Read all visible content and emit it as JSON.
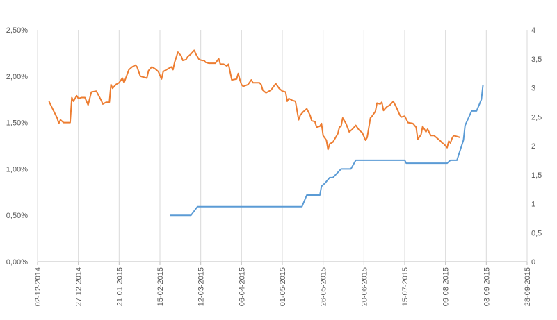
{
  "chart_data": {
    "type": "line",
    "title": "",
    "xlabel": "",
    "ylabel": "",
    "y2label": "",
    "grid": "vertical",
    "legend": "none",
    "x_ticks": [
      "02-12-2014",
      "27-12-2014",
      "21-01-2015",
      "15-02-2015",
      "12-03-2015",
      "06-04-2015",
      "01-05-2015",
      "26-05-2015",
      "20-06-2015",
      "15-07-2015",
      "09-08-2015",
      "03-09-2015",
      "28-09-2015"
    ],
    "xlim": [
      "2014-12-02",
      "2015-09-28"
    ],
    "y_left_ticks": [
      "0,00%",
      "0,50%",
      "1,00%",
      "1,50%",
      "2,00%",
      "2,50%"
    ],
    "ylim_left": [
      0,
      0.025
    ],
    "y_right_ticks": [
      "0",
      "0,5",
      "1",
      "1,5",
      "2",
      "2,5",
      "3",
      "3,5",
      "4"
    ],
    "ylim_right": [
      0,
      4
    ],
    "colors": {
      "series_orange": "#ED7D31",
      "series_blue": "#5B9BD5",
      "grid": "#D9D9D9",
      "axis": "#BFBFBF"
    },
    "series": [
      {
        "axis": "left",
        "color": "#ED7D31",
        "points": [
          [
            "2014-12-09",
            0.0173
          ],
          [
            "2014-12-12",
            0.0162
          ],
          [
            "2014-12-14",
            0.0155
          ],
          [
            "2014-12-15",
            0.0149
          ],
          [
            "2014-12-16",
            0.0153
          ],
          [
            "2014-12-18",
            0.015
          ],
          [
            "2014-12-20",
            0.015
          ],
          [
            "2014-12-22",
            0.015
          ],
          [
            "2014-12-23",
            0.0177
          ],
          [
            "2014-12-24",
            0.0173
          ],
          [
            "2014-12-26",
            0.0179
          ],
          [
            "2014-12-27",
            0.0176
          ],
          [
            "2014-12-29",
            0.0177
          ],
          [
            "2014-12-31",
            0.0177
          ],
          [
            "2015-01-02",
            0.0169
          ],
          [
            "2015-01-04",
            0.0183
          ],
          [
            "2015-01-07",
            0.0184
          ],
          [
            "2015-01-10",
            0.0174
          ],
          [
            "2015-01-11",
            0.017
          ],
          [
            "2015-01-13",
            0.0172
          ],
          [
            "2015-01-15",
            0.0172
          ],
          [
            "2015-01-16",
            0.0191
          ],
          [
            "2015-01-17",
            0.0187
          ],
          [
            "2015-01-19",
            0.0191
          ],
          [
            "2015-01-21",
            0.0193
          ],
          [
            "2015-01-23",
            0.0198
          ],
          [
            "2015-01-24",
            0.0193
          ],
          [
            "2015-01-27",
            0.0207
          ],
          [
            "2015-01-29",
            0.021
          ],
          [
            "2015-01-31",
            0.0212
          ],
          [
            "2015-02-01",
            0.021
          ],
          [
            "2015-02-03",
            0.02
          ],
          [
            "2015-02-07",
            0.0198
          ],
          [
            "2015-02-08",
            0.0206
          ],
          [
            "2015-02-10",
            0.021
          ],
          [
            "2015-02-12",
            0.0208
          ],
          [
            "2015-02-14",
            0.0205
          ],
          [
            "2015-02-16",
            0.0197
          ],
          [
            "2015-02-17",
            0.0205
          ],
          [
            "2015-02-20",
            0.0208
          ],
          [
            "2015-02-22",
            0.021
          ],
          [
            "2015-02-23",
            0.0207
          ],
          [
            "2015-02-24",
            0.0215
          ],
          [
            "2015-02-26",
            0.0226
          ],
          [
            "2015-02-28",
            0.0222
          ],
          [
            "2015-03-01",
            0.0217
          ],
          [
            "2015-03-03",
            0.0218
          ],
          [
            "2015-03-04",
            0.0221
          ],
          [
            "2015-03-06",
            0.0224
          ],
          [
            "2015-03-08",
            0.0228
          ],
          [
            "2015-03-09",
            0.0224
          ],
          [
            "2015-03-11",
            0.0218
          ],
          [
            "2015-03-13",
            0.0217
          ],
          [
            "2015-03-14",
            0.0217
          ],
          [
            "2015-03-15",
            0.0215
          ],
          [
            "2015-03-17",
            0.0214
          ],
          [
            "2015-03-20",
            0.0214
          ],
          [
            "2015-03-21",
            0.0214
          ],
          [
            "2015-03-23",
            0.0219
          ],
          [
            "2015-03-24",
            0.0213
          ],
          [
            "2015-03-26",
            0.0213
          ],
          [
            "2015-03-28",
            0.0211
          ],
          [
            "2015-03-29",
            0.0213
          ],
          [
            "2015-03-31",
            0.0196
          ],
          [
            "2015-04-03",
            0.0197
          ],
          [
            "2015-04-04",
            0.0203
          ],
          [
            "2015-04-05",
            0.0196
          ],
          [
            "2015-04-06",
            0.0191
          ],
          [
            "2015-04-07",
            0.0189
          ],
          [
            "2015-04-10",
            0.0191
          ],
          [
            "2015-04-12",
            0.0196
          ],
          [
            "2015-04-13",
            0.0193
          ],
          [
            "2015-04-15",
            0.0193
          ],
          [
            "2015-04-17",
            0.0193
          ],
          [
            "2015-04-18",
            0.0191
          ],
          [
            "2015-04-19",
            0.0185
          ],
          [
            "2015-04-21",
            0.0182
          ],
          [
            "2015-04-24",
            0.0185
          ],
          [
            "2015-04-27",
            0.0192
          ],
          [
            "2015-04-29",
            0.0187
          ],
          [
            "2015-05-01",
            0.0184
          ],
          [
            "2015-05-03",
            0.0183
          ],
          [
            "2015-05-04",
            0.0173
          ],
          [
            "2015-05-05",
            0.0176
          ],
          [
            "2015-05-07",
            0.0174
          ],
          [
            "2015-05-09",
            0.0173
          ],
          [
            "2015-05-11",
            0.0153
          ],
          [
            "2015-05-12",
            0.0158
          ],
          [
            "2015-05-14",
            0.0162
          ],
          [
            "2015-05-16",
            0.0165
          ],
          [
            "2015-05-18",
            0.0158
          ],
          [
            "2015-05-19",
            0.0152
          ],
          [
            "2015-05-21",
            0.0151
          ],
          [
            "2015-05-22",
            0.0145
          ],
          [
            "2015-05-24",
            0.0146
          ],
          [
            "2015-05-25",
            0.0149
          ],
          [
            "2015-05-26",
            0.0136
          ],
          [
            "2015-05-28",
            0.0131
          ],
          [
            "2015-05-29",
            0.0121
          ],
          [
            "2015-05-30",
            0.0127
          ],
          [
            "2015-06-01",
            0.0129
          ],
          [
            "2015-06-04",
            0.0138
          ],
          [
            "2015-06-05",
            0.0145
          ],
          [
            "2015-06-06",
            0.0146
          ],
          [
            "2015-06-07",
            0.0155
          ],
          [
            "2015-06-09",
            0.0149
          ],
          [
            "2015-06-11",
            0.014
          ],
          [
            "2015-06-13",
            0.0143
          ],
          [
            "2015-06-15",
            0.0147
          ],
          [
            "2015-06-17",
            0.0142
          ],
          [
            "2015-06-19",
            0.0139
          ],
          [
            "2015-06-21",
            0.0131
          ],
          [
            "2015-06-22",
            0.0134
          ],
          [
            "2015-06-24",
            0.0155
          ],
          [
            "2015-06-25",
            0.0157
          ],
          [
            "2015-06-27",
            0.0162
          ],
          [
            "2015-06-28",
            0.0171
          ],
          [
            "2015-06-30",
            0.017
          ],
          [
            "2015-07-01",
            0.0172
          ],
          [
            "2015-07-02",
            0.0163
          ],
          [
            "2015-07-04",
            0.0167
          ],
          [
            "2015-07-06",
            0.0169
          ],
          [
            "2015-07-08",
            0.0173
          ],
          [
            "2015-07-10",
            0.0166
          ],
          [
            "2015-07-12",
            0.0158
          ],
          [
            "2015-07-13",
            0.0156
          ],
          [
            "2015-07-15",
            0.0157
          ],
          [
            "2015-07-17",
            0.015
          ],
          [
            "2015-07-20",
            0.0149
          ],
          [
            "2015-07-22",
            0.0145
          ],
          [
            "2015-07-23",
            0.0132
          ],
          [
            "2015-07-25",
            0.0137
          ],
          [
            "2015-07-26",
            0.0146
          ],
          [
            "2015-07-28",
            0.014
          ],
          [
            "2015-07-29",
            0.0143
          ],
          [
            "2015-07-31",
            0.0136
          ],
          [
            "2015-08-02",
            0.0136
          ],
          [
            "2015-08-04",
            0.0133
          ],
          [
            "2015-08-06",
            0.013
          ],
          [
            "2015-08-07",
            0.0128
          ],
          [
            "2015-08-08",
            0.0127
          ],
          [
            "2015-08-10",
            0.0123
          ],
          [
            "2015-08-11",
            0.013
          ],
          [
            "2015-08-12",
            0.0128
          ],
          [
            "2015-08-13",
            0.0133
          ],
          [
            "2015-08-14",
            0.0136
          ],
          [
            "2015-08-16",
            0.0135
          ],
          [
            "2015-08-18",
            0.0134
          ]
        ]
      },
      {
        "axis": "right",
        "color": "#5B9BD5",
        "points": [
          [
            "2015-02-21",
            0.8
          ],
          [
            "2015-03-06",
            0.8
          ],
          [
            "2015-03-10",
            0.95
          ],
          [
            "2015-05-01",
            0.95
          ],
          [
            "2015-05-13",
            0.95
          ],
          [
            "2015-05-16",
            1.15
          ],
          [
            "2015-05-24",
            1.15
          ],
          [
            "2015-05-25",
            1.3
          ],
          [
            "2015-05-27",
            1.35
          ],
          [
            "2015-05-30",
            1.45
          ],
          [
            "2015-06-01",
            1.45
          ],
          [
            "2015-06-06",
            1.6
          ],
          [
            "2015-06-12",
            1.6
          ],
          [
            "2015-06-15",
            1.75
          ],
          [
            "2015-07-15",
            1.75
          ],
          [
            "2015-07-16",
            1.7
          ],
          [
            "2015-07-20",
            1.7
          ],
          [
            "2015-08-10",
            1.7
          ],
          [
            "2015-08-12",
            1.75
          ],
          [
            "2015-08-16",
            1.75
          ],
          [
            "2015-08-20",
            2.1
          ],
          [
            "2015-08-21",
            2.35
          ],
          [
            "2015-08-25",
            2.6
          ],
          [
            "2015-08-28",
            2.6
          ],
          [
            "2015-08-31",
            2.8
          ],
          [
            "2015-09-01",
            3.05
          ]
        ]
      }
    ]
  }
}
